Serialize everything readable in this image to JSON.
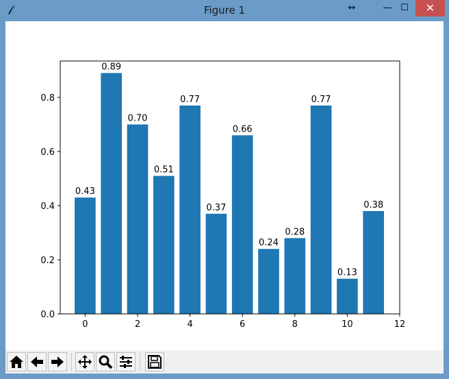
{
  "window": {
    "title": "Figure 1",
    "resize_glyph": "↔",
    "minimize_glyph": "—",
    "maximize_glyph": "☐",
    "close_glyph": "✕"
  },
  "toolbar": {
    "buttons": [
      {
        "name": "home-button",
        "icon": "home-icon"
      },
      {
        "name": "back-button",
        "icon": "arrow-left-icon"
      },
      {
        "name": "forward-button",
        "icon": "arrow-right-icon"
      },
      {
        "name": "pan-button",
        "icon": "move-icon"
      },
      {
        "name": "zoom-button",
        "icon": "magnifier-icon"
      },
      {
        "name": "configure-subplots-button",
        "icon": "sliders-icon"
      },
      {
        "name": "save-button",
        "icon": "floppy-icon"
      }
    ]
  },
  "chart_data": {
    "type": "bar",
    "x": [
      0,
      1,
      2,
      3,
      4,
      5,
      6,
      7,
      8,
      9,
      10,
      11
    ],
    "values": [
      0.43,
      0.89,
      0.7,
      0.51,
      0.77,
      0.37,
      0.66,
      0.24,
      0.28,
      0.77,
      0.13,
      0.38
    ],
    "data_labels": [
      "0.43",
      "0.89",
      "0.70",
      "0.51",
      "0.77",
      "0.37",
      "0.66",
      "0.24",
      "0.28",
      "0.77",
      "0.13",
      "0.38"
    ],
    "xticks": [
      "0",
      "2",
      "4",
      "6",
      "8",
      "10",
      "12"
    ],
    "xtick_values": [
      0,
      2,
      4,
      6,
      8,
      10,
      12
    ],
    "yticks": [
      "0.0",
      "0.2",
      "0.4",
      "0.6",
      "0.8"
    ],
    "ytick_values": [
      0,
      0.2,
      0.4,
      0.6,
      0.8
    ],
    "xlim": [
      -0.95,
      12
    ],
    "ylim": [
      0,
      0.9345
    ],
    "bar_color": "#1f77b4",
    "title": "",
    "xlabel": "",
    "ylabel": "",
    "grid": false
  }
}
